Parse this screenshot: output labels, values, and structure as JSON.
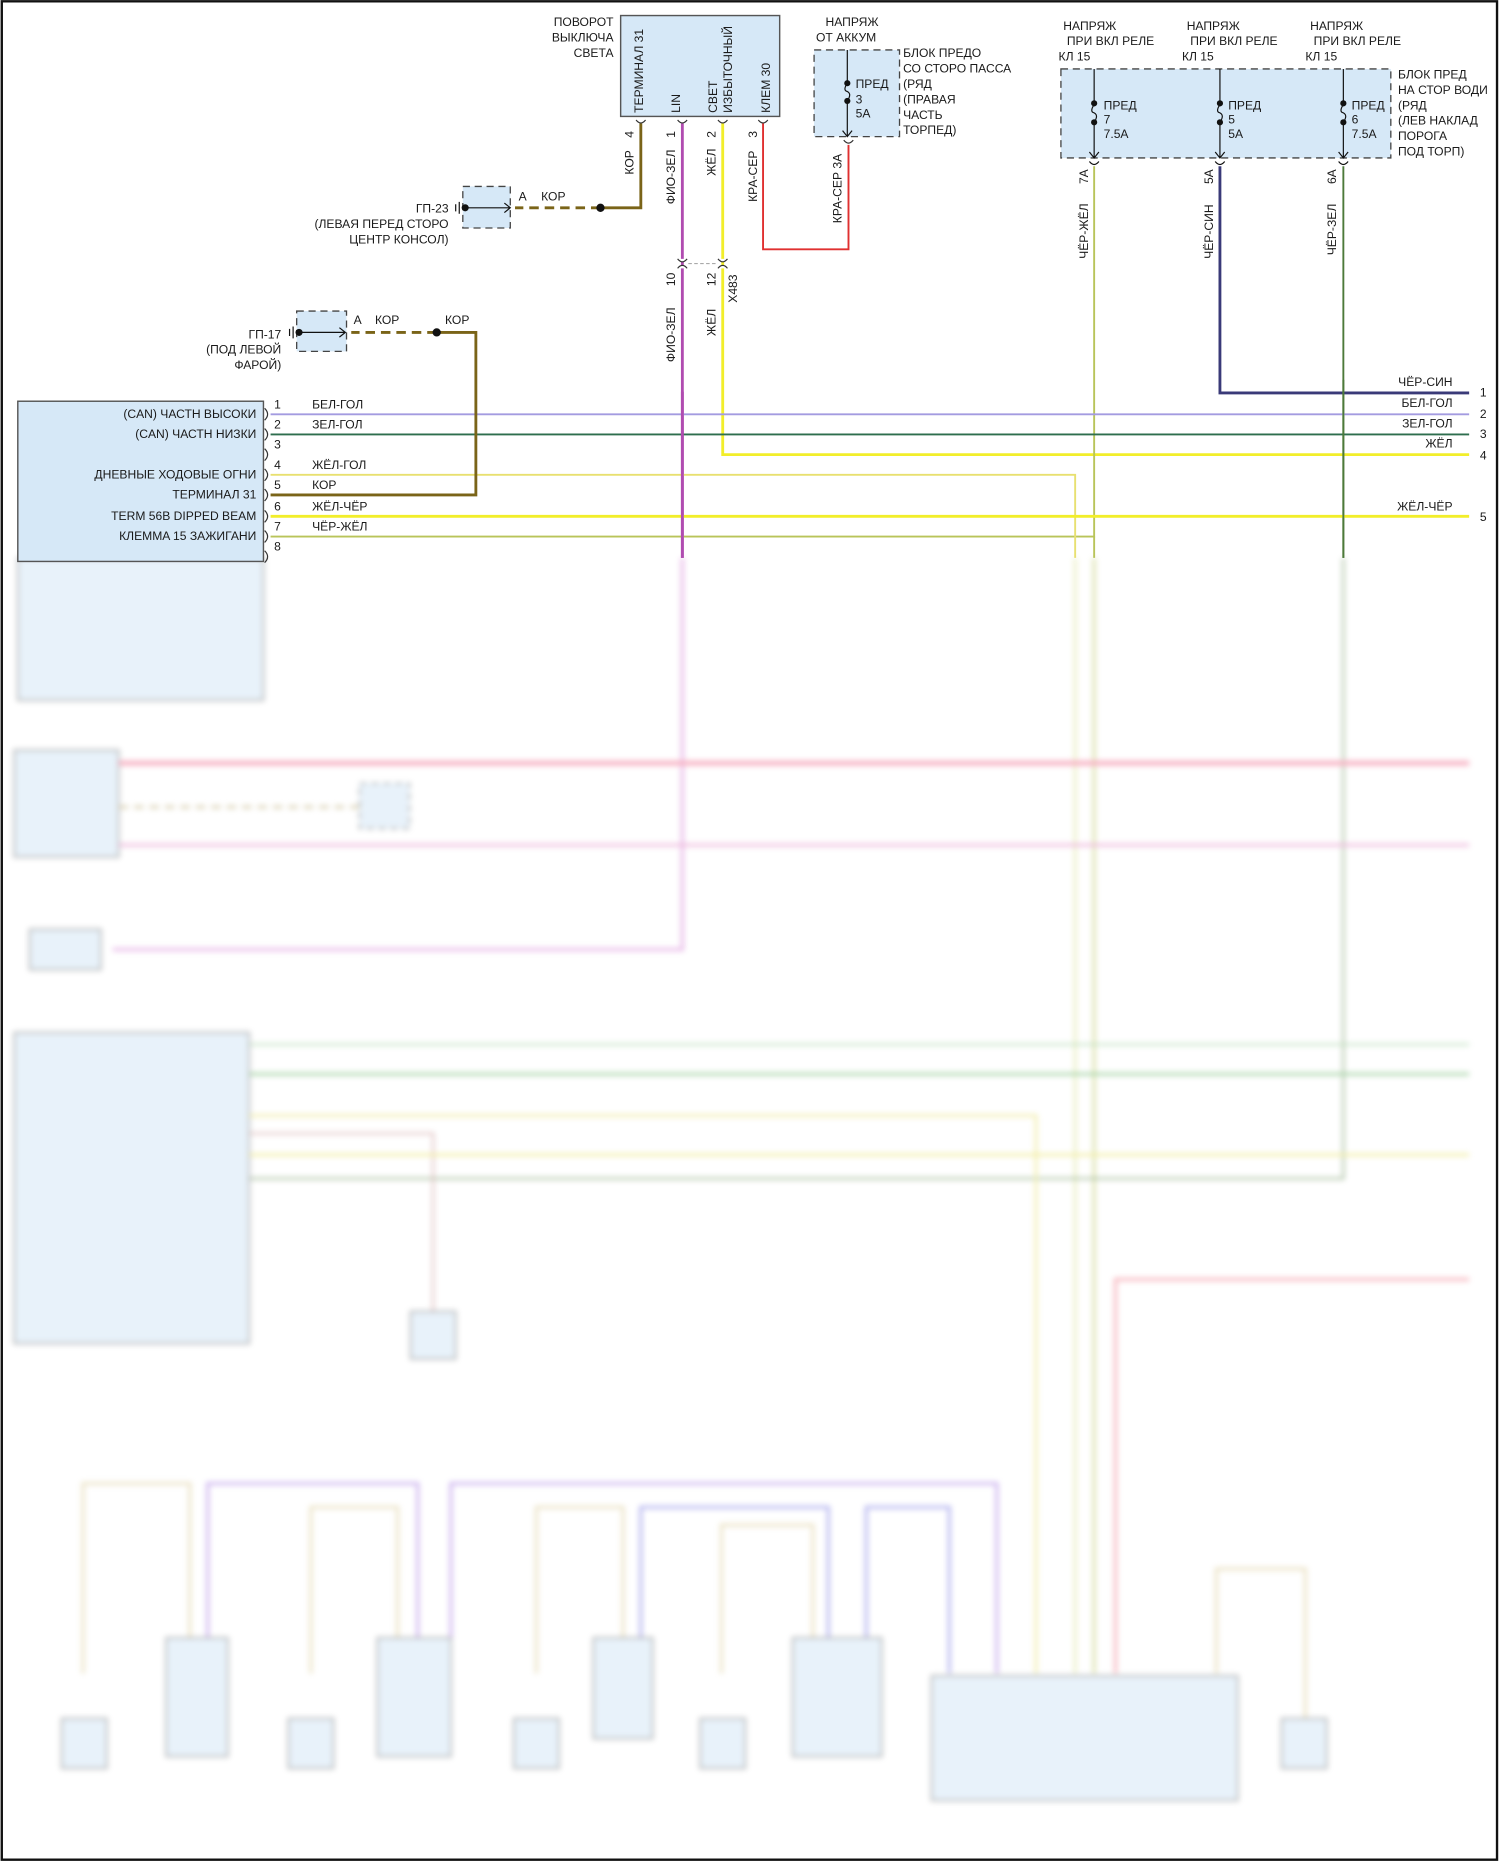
{
  "colors": {
    "kor": "#7a6418",
    "fio_zel": "#b04cb0",
    "zhel": "#f2ee2a",
    "kra_ser": "#e03030",
    "bel_gol": "#a39be0",
    "zel_gol": "#2e6e4e",
    "cher_sin": "#3a3a78",
    "cher_zhel": "#b9c45a",
    "cher_zel": "#4d7a3a",
    "zhel_gol": "#e8e070",
    "module_fill": "#d6e8f7"
  },
  "switch": {
    "title": [
      "ПОВОРОТ",
      "ВЫКЛЮЧА",
      "СВЕТА"
    ],
    "pins": [
      {
        "label": "ТЕРМИНАЛ 31",
        "num": "4",
        "wire": "КОР"
      },
      {
        "label": "LIN",
        "num": "1",
        "wire": "ФИО-ЗЕЛ"
      },
      {
        "label_lines": [
          "СВЕТ",
          "ИЗБЫТОЧНЫЙ"
        ],
        "num": "2",
        "wire": "ЖЁЛ"
      },
      {
        "label": "КЛЕМ 30",
        "num": "3",
        "wire": "КРА-СЕР"
      }
    ]
  },
  "ground_gp23": {
    "name": "ГП-23",
    "location": [
      "(ЛЕВАЯ ПЕРЕД СТОРО",
      "ЦЕНТР КОНСОЛ)"
    ],
    "pin": "A",
    "wire": "КОР"
  },
  "ground_gp17": {
    "name": "ГП-17",
    "location": [
      "(ПОД ЛЕВОЙ",
      "ФАРОЙ)"
    ],
    "pin": "A",
    "wire": "КОР",
    "wire2": "КОР"
  },
  "connector_x483": {
    "name": "X483",
    "pins": [
      "10",
      "12"
    ],
    "wires": [
      "ФИО-ЗЕЛ",
      "ЖЁЛ"
    ]
  },
  "pass_fuse_box": {
    "supply": [
      "НАПРЯЖ",
      "ОТ АККУМ"
    ],
    "fuse": [
      "ПРЕД",
      "3",
      "5A"
    ],
    "name": [
      "БЛОК ПРЕДО",
      "СО СТОРО ПАССА",
      "(РЯД",
      "(ПРАВАЯ",
      "ЧАСТЬ",
      "ТОРПЕД)"
    ],
    "out_wire": "КРА-СЕР 3A"
  },
  "driver_fuse_box": {
    "name": [
      "БЛОК ПРЕД",
      "НА СТОР ВОДИ",
      "(РЯД",
      "(ЛЕВ НАКЛАД",
      "ПОРОГА",
      "ПОД ТОРП)"
    ],
    "fuses": [
      {
        "supply": [
          "НАПРЯЖ",
          "ПРИ ВКЛ РЕЛЕ",
          "КЛ 15"
        ],
        "fuse": [
          "ПРЕД",
          "7",
          "7.5A"
        ],
        "pin": "7A",
        "wire": "ЧЁР-ЖЁЛ"
      },
      {
        "supply": [
          "НАПРЯЖ",
          "ПРИ ВКЛ РЕЛЕ",
          "КЛ 15"
        ],
        "fuse": [
          "ПРЕД",
          "5",
          "5A"
        ],
        "pin": "5A",
        "wire": "ЧЁР-СИН"
      },
      {
        "supply": [
          "НАПРЯЖ",
          "ПРИ ВКЛ РЕЛЕ",
          "КЛ 15"
        ],
        "fuse": [
          "ПРЕД",
          "6",
          "7.5A"
        ],
        "pin": "6A",
        "wire": "ЧЁР-ЗЕЛ"
      }
    ]
  },
  "left_module": {
    "pins": [
      {
        "num": "1",
        "label": "(CAN) ЧАСТН ВЫСОКИ",
        "wire": "БЕЛ-ГОЛ"
      },
      {
        "num": "2",
        "label": "(CAN) ЧАСТН НИЗКИ",
        "wire": "ЗЕЛ-ГОЛ"
      },
      {
        "num": "3",
        "label": "",
        "wire": ""
      },
      {
        "num": "4",
        "label": "ДНЕВНЫЕ ХОДОВЫЕ ОГНИ",
        "wire": "ЖЁЛ-ГОЛ"
      },
      {
        "num": "5",
        "label": "ТЕРМИНАЛ 31",
        "wire": "КОР"
      },
      {
        "num": "6",
        "label": "TERM 56B DIPPED BEAM",
        "wire": "ЖЁЛ-ЧЁР"
      },
      {
        "num": "7",
        "label": "КЛЕМMA 15 ЗАЖИГАНИ",
        "wire": "ЧЁР-ЖЁЛ"
      },
      {
        "num": "8",
        "label": "",
        "wire": ""
      }
    ]
  },
  "right_connector": {
    "pins": [
      {
        "num": "1",
        "wire": "ЧЁР-СИН"
      },
      {
        "num": "2",
        "wire": "БЕЛ-ГОЛ"
      },
      {
        "num": "3",
        "wire": "ЗЕЛ-ГОЛ"
      },
      {
        "num": "4",
        "wire": "ЖЁЛ"
      },
      {
        "num": "5",
        "wire": "ЖЁЛ-ЧЁР"
      }
    ]
  }
}
